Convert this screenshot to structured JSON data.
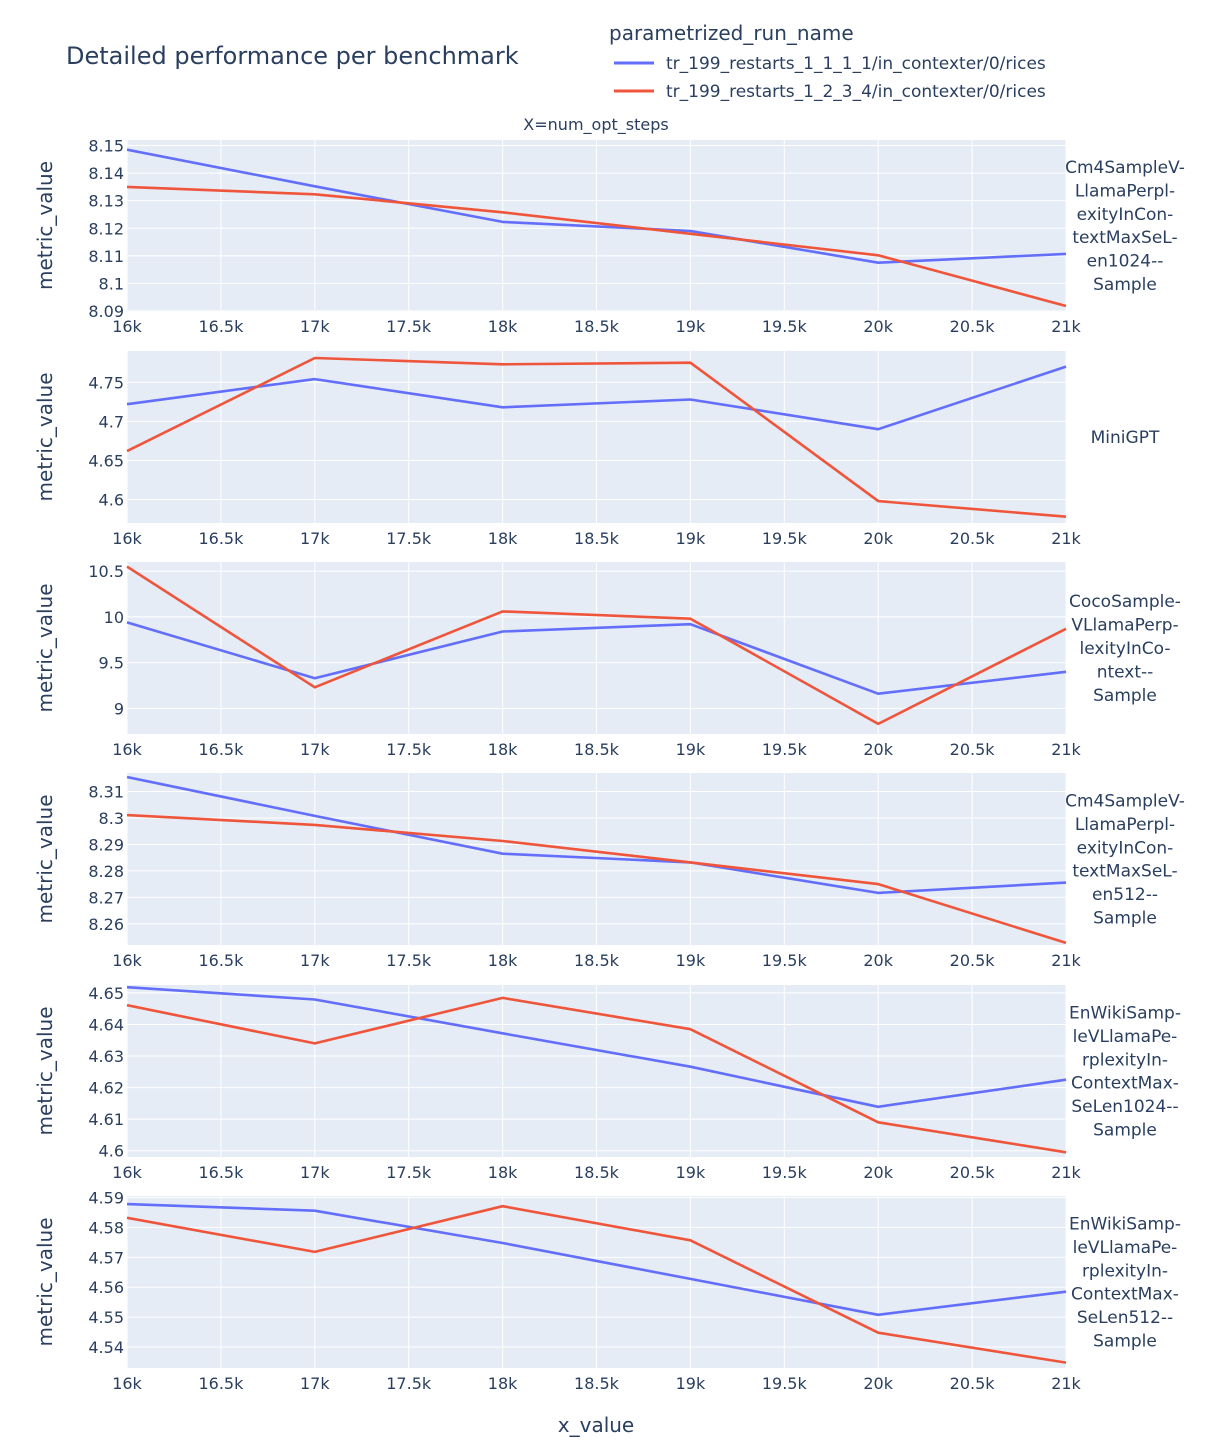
{
  "chart_data": {
    "type": "line",
    "title": "Detailed performance per benchmark",
    "legend": {
      "title": "parametrized_run_name",
      "position": "top-right"
    },
    "facet_column_label": "X=num_opt_steps",
    "xlabel": "x_value",
    "ylabel": "metric_value",
    "xlim": [
      16000,
      21000
    ],
    "x_tick_labels": [
      "16k",
      "16.5k",
      "17k",
      "17.5k",
      "18k",
      "18.5k",
      "19k",
      "19.5k",
      "20k",
      "20.5k",
      "21k"
    ],
    "x": [
      16000,
      17000,
      18000,
      19000,
      20000,
      21000
    ],
    "series_names": [
      "tr_199_restarts_1_1_1_1/in_contexter/0/rices",
      "tr_199_restarts_1_2_3_4/in_contexter/0/rices"
    ],
    "series_colors": [
      "#636efa",
      "#ef553b"
    ],
    "grid": true,
    "panels": [
      {
        "label_lines": [
          "Cm4SampleV-",
          "LlamaPerpl-",
          "exityInCon-",
          "textMaxSeL-",
          "en1024--",
          "Sample"
        ],
        "ylim": [
          8.09,
          8.152
        ],
        "y_tick_labels": [
          "8.09",
          "8.1",
          "8.11",
          "8.12",
          "8.13",
          "8.14",
          "8.15"
        ],
        "y_tick_values": [
          8.09,
          8.1,
          8.11,
          8.12,
          8.13,
          8.14,
          8.15
        ],
        "series": [
          {
            "values": [
              8.1485,
              8.1352,
              8.1223,
              8.119,
              8.1075,
              8.1107
            ]
          },
          {
            "values": [
              8.135,
              8.1323,
              8.1258,
              8.118,
              8.1102,
              8.0918
            ]
          }
        ]
      },
      {
        "label_lines": [
          "MiniGPT"
        ],
        "ylim": [
          4.57,
          4.79
        ],
        "y_tick_labels": [
          "4.6",
          "4.65",
          "4.7",
          "4.75"
        ],
        "y_tick_values": [
          4.6,
          4.65,
          4.7,
          4.75
        ],
        "series": [
          {
            "values": [
              4.722,
              4.754,
              4.718,
              4.728,
              4.69,
              4.77
            ]
          },
          {
            "values": [
              4.662,
              4.781,
              4.773,
              4.775,
              4.598,
              4.578
            ]
          }
        ]
      },
      {
        "label_lines": [
          "CocoSample-",
          "VLlamaPerp-",
          "lexityInCo-",
          "ntext--",
          "Sample"
        ],
        "ylim": [
          8.72,
          10.6
        ],
        "y_tick_labels": [
          "9",
          "9.5",
          "10",
          "10.5"
        ],
        "y_tick_values": [
          9,
          9.5,
          10,
          10.5
        ],
        "series": [
          {
            "values": [
              9.94,
              9.33,
              9.84,
              9.92,
              9.16,
              9.4
            ]
          },
          {
            "values": [
              10.55,
              9.23,
              10.06,
              9.98,
              8.83,
              9.87
            ]
          }
        ]
      },
      {
        "label_lines": [
          "Cm4SampleV-",
          "LlamaPerpl-",
          "exityInCon-",
          "textMaxSeL-",
          "en512--",
          "Sample"
        ],
        "ylim": [
          8.252,
          8.317
        ],
        "y_tick_labels": [
          "8.26",
          "8.27",
          "8.28",
          "8.29",
          "8.3",
          "8.31"
        ],
        "y_tick_values": [
          8.26,
          8.27,
          8.28,
          8.29,
          8.3,
          8.31
        ],
        "series": [
          {
            "values": [
              8.3155,
              8.3008,
              8.2865,
              8.2832,
              8.2717,
              8.2756
            ]
          },
          {
            "values": [
              8.3011,
              8.2974,
              8.2913,
              8.2832,
              8.275,
              8.2528
            ]
          }
        ]
      },
      {
        "label_lines": [
          "EnWikiSamp-",
          "leVLlamaPe-",
          "rplexityIn-",
          "ContextMax-",
          "SeLen1024--",
          "Sample"
        ],
        "ylim": [
          4.598,
          4.6525
        ],
        "y_tick_labels": [
          "4.6",
          "4.61",
          "4.62",
          "4.63",
          "4.64",
          "4.65"
        ],
        "y_tick_values": [
          4.6,
          4.61,
          4.62,
          4.63,
          4.64,
          4.65
        ],
        "series": [
          {
            "values": [
              4.6518,
              4.6479,
              4.6372,
              4.6266,
              4.6139,
              4.6225
            ]
          },
          {
            "values": [
              4.6461,
              4.634,
              4.6484,
              4.6385,
              4.609,
              4.5995
            ]
          }
        ]
      },
      {
        "label_lines": [
          "EnWikiSamp-",
          "leVLlamaPe-",
          "rplexityIn-",
          "ContextMax-",
          "SeLen512--",
          "Sample"
        ],
        "ylim": [
          4.533,
          4.5905
        ],
        "y_tick_labels": [
          "4.54",
          "4.55",
          "4.56",
          "4.57",
          "4.58",
          "4.59"
        ],
        "y_tick_values": [
          4.54,
          4.55,
          4.56,
          4.57,
          4.58,
          4.59
        ],
        "series": [
          {
            "values": [
              4.5878,
              4.5856,
              4.5748,
              4.5628,
              4.5508,
              4.5585
            ]
          },
          {
            "values": [
              4.5832,
              4.5718,
              4.5871,
              4.5757,
              4.5448,
              4.5348
            ]
          }
        ]
      }
    ]
  }
}
